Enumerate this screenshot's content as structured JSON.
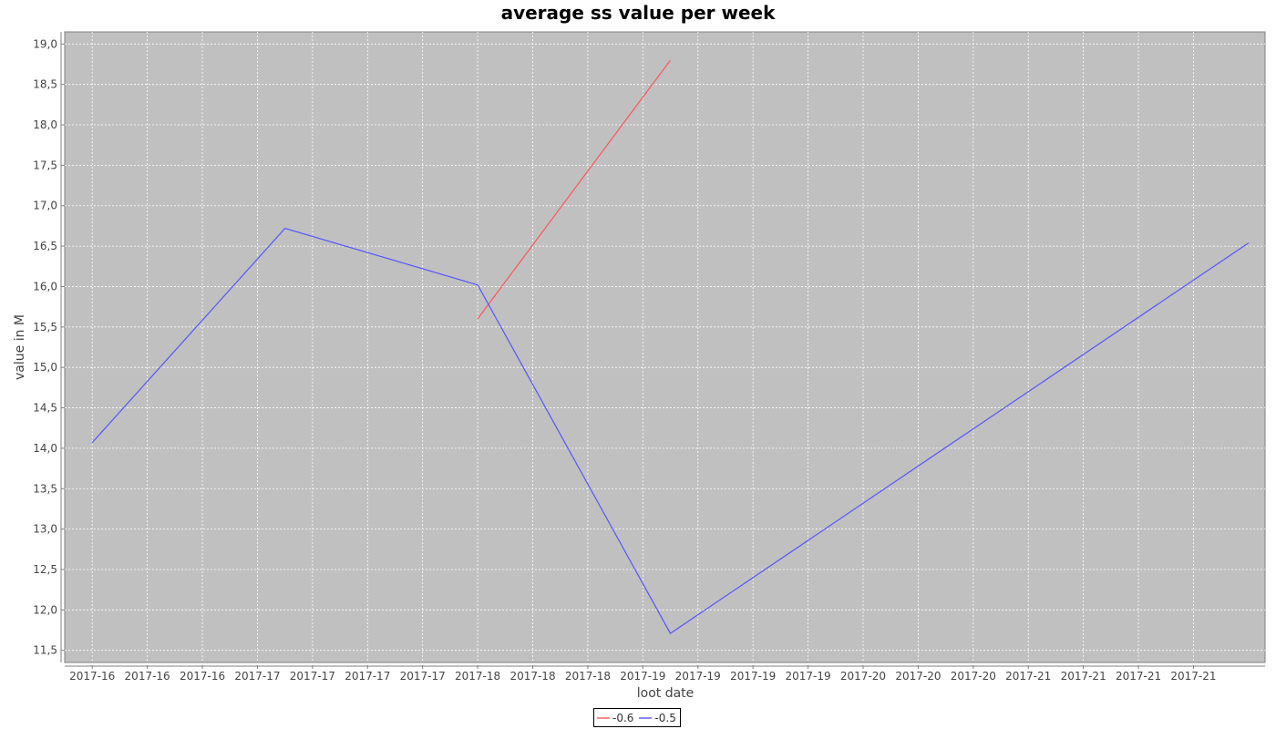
{
  "chart_data": {
    "type": "line",
    "title": "average ss value per week",
    "xlabel": "loot date",
    "ylabel": "value in M",
    "x_ticks": [
      "2017-16",
      "2017-16",
      "2017-16",
      "2017-17",
      "2017-17",
      "2017-17",
      "2017-17",
      "2017-18",
      "2017-18",
      "2017-18",
      "2017-19",
      "2017-19",
      "2017-19",
      "2017-19",
      "2017-20",
      "2017-20",
      "2017-20",
      "2017-21",
      "2017-21",
      "2017-21",
      "2017-21"
    ],
    "x_range": [
      -0.5,
      21.3
    ],
    "y_ticks": [
      "11,5",
      "12,0",
      "12,5",
      "13,0",
      "13,5",
      "14,0",
      "14,5",
      "15,0",
      "15,5",
      "16,0",
      "16,5",
      "17,0",
      "17,5",
      "18,0",
      "18,5",
      "19,0"
    ],
    "ylim": [
      11.35,
      19.15
    ],
    "grid": true,
    "legend_position": "bottom-center",
    "plot_background": "#c0c0c0",
    "series": [
      {
        "name": "-0.6",
        "color": "#ff5555",
        "x": [
          7.0,
          10.5
        ],
        "values": [
          15.6,
          18.8
        ]
      },
      {
        "name": "-0.5",
        "color": "#5555ff",
        "x": [
          0.0,
          3.5,
          7.0,
          10.5,
          21.0
        ],
        "values": [
          14.07,
          16.72,
          16.02,
          11.71,
          16.54
        ]
      }
    ]
  }
}
